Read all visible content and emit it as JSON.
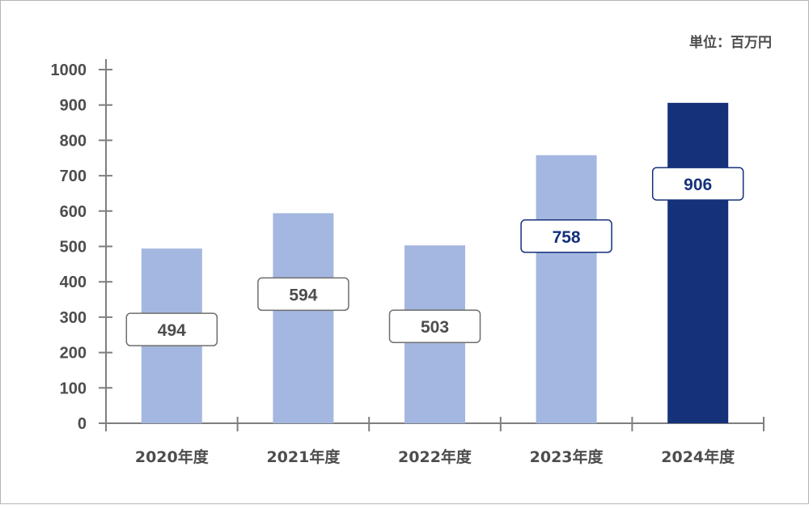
{
  "chart_data": {
    "type": "bar",
    "categories": [
      "2020年度",
      "2021年度",
      "2022年度",
      "2023年度",
      "2024年度"
    ],
    "values": [
      494,
      594,
      503,
      758,
      906
    ],
    "highlight_index": 4,
    "unit_label": "単位：百万円",
    "ylim": [
      0,
      1000
    ],
    "yticks": [
      "0",
      "100",
      "200",
      "300",
      "400",
      "500",
      "600",
      "700",
      "800",
      "900",
      "1000"
    ],
    "grid": false,
    "legend": "none"
  },
  "colors": {
    "bar": "#a4b7e0",
    "bar_highlight": "#15317a",
    "axis": "#7f7f7f",
    "label_text": "#4d4d4d",
    "highlight_text": "#15317a"
  }
}
